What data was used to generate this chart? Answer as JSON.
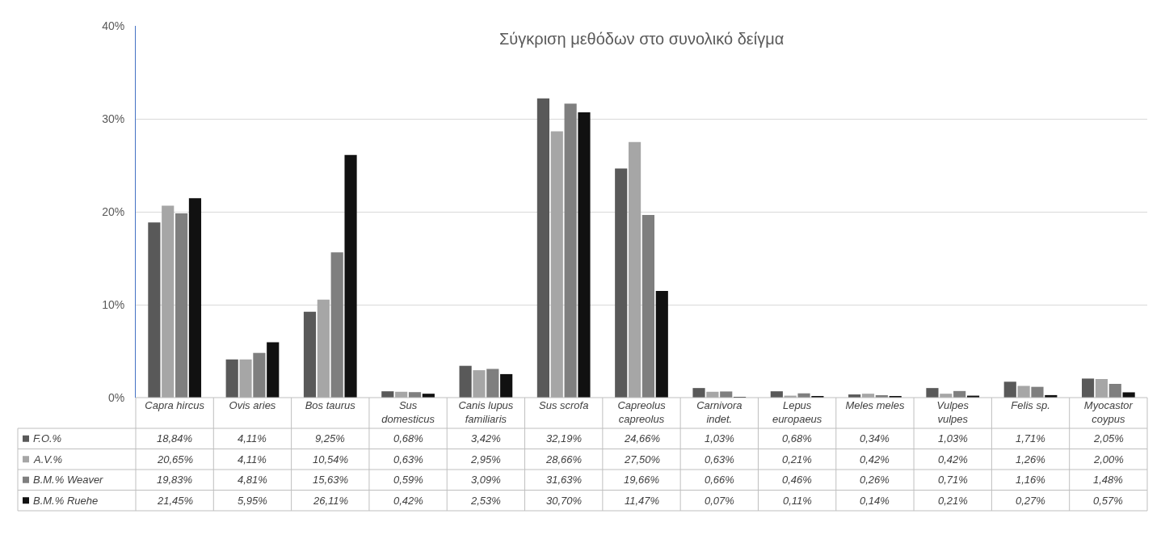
{
  "chart_data": {
    "type": "bar",
    "title": "Σύγκριση μεθόδων στο συνολικό δείγμα",
    "categories": [
      "Capra hircus",
      "Ovis aries",
      "Bos taurus",
      "Sus domesticus",
      "Canis lupus familiaris",
      "Sus scrofa",
      "Capreolus capreolus",
      "Carnivora indet.",
      "Lepus europaeus",
      "Meles meles",
      "Vulpes vulpes",
      "Felis sp.",
      "Myocastor coypus"
    ],
    "series": [
      {
        "name": "F.O.%",
        "color": "#595959",
        "values": [
          18.84,
          4.11,
          9.25,
          0.68,
          3.42,
          32.19,
          24.66,
          1.03,
          0.68,
          0.34,
          1.03,
          1.71,
          2.05
        ],
        "value_labels": [
          "18,84%",
          "4,11%",
          "9,25%",
          "0,68%",
          "3,42%",
          "32,19%",
          "24,66%",
          "1,03%",
          "0,68%",
          "0,34%",
          "1,03%",
          "1,71%",
          "2,05%"
        ]
      },
      {
        "name": "A.V.%",
        "color": "#a6a6a6",
        "values": [
          20.65,
          4.11,
          10.54,
          0.63,
          2.95,
          28.66,
          27.5,
          0.63,
          0.21,
          0.42,
          0.42,
          1.26,
          2.0
        ],
        "value_labels": [
          "20,65%",
          "4,11%",
          "10,54%",
          "0,63%",
          "2,95%",
          "28,66%",
          "27,50%",
          "0,63%",
          "0,21%",
          "0,42%",
          "0,42%",
          "1,26%",
          "2,00%"
        ]
      },
      {
        "name": "B.M.% Weaver",
        "color": "#7f7f7f",
        "values": [
          19.83,
          4.81,
          15.63,
          0.59,
          3.09,
          31.63,
          19.66,
          0.66,
          0.46,
          0.26,
          0.71,
          1.16,
          1.48
        ],
        "value_labels": [
          "19,83%",
          "4,81%",
          "15,63%",
          "0,59%",
          "3,09%",
          "31,63%",
          "19,66%",
          "0,66%",
          "0,46%",
          "0,26%",
          "0,71%",
          "1,16%",
          "1,48%"
        ]
      },
      {
        "name": "B.M.% Ruehe",
        "color": "#111111",
        "values": [
          21.45,
          5.95,
          26.11,
          0.42,
          2.53,
          30.7,
          11.47,
          0.07,
          0.11,
          0.14,
          0.21,
          0.27,
          0.57
        ],
        "value_labels": [
          "21,45%",
          "5,95%",
          "26,11%",
          "0,42%",
          "2,53%",
          "30,70%",
          "11,47%",
          "0,07%",
          "0,11%",
          "0,14%",
          "0,21%",
          "0,27%",
          "0,57%"
        ]
      }
    ],
    "ylim": [
      0,
      40
    ],
    "yticks": [
      {
        "value": 0,
        "label": "0%"
      },
      {
        "value": 10,
        "label": "10%"
      },
      {
        "value": 20,
        "label": "20%"
      },
      {
        "value": 30,
        "label": "30%"
      },
      {
        "value": 40,
        "label": "40%"
      }
    ],
    "grid": "y",
    "legend": "bottom left"
  }
}
